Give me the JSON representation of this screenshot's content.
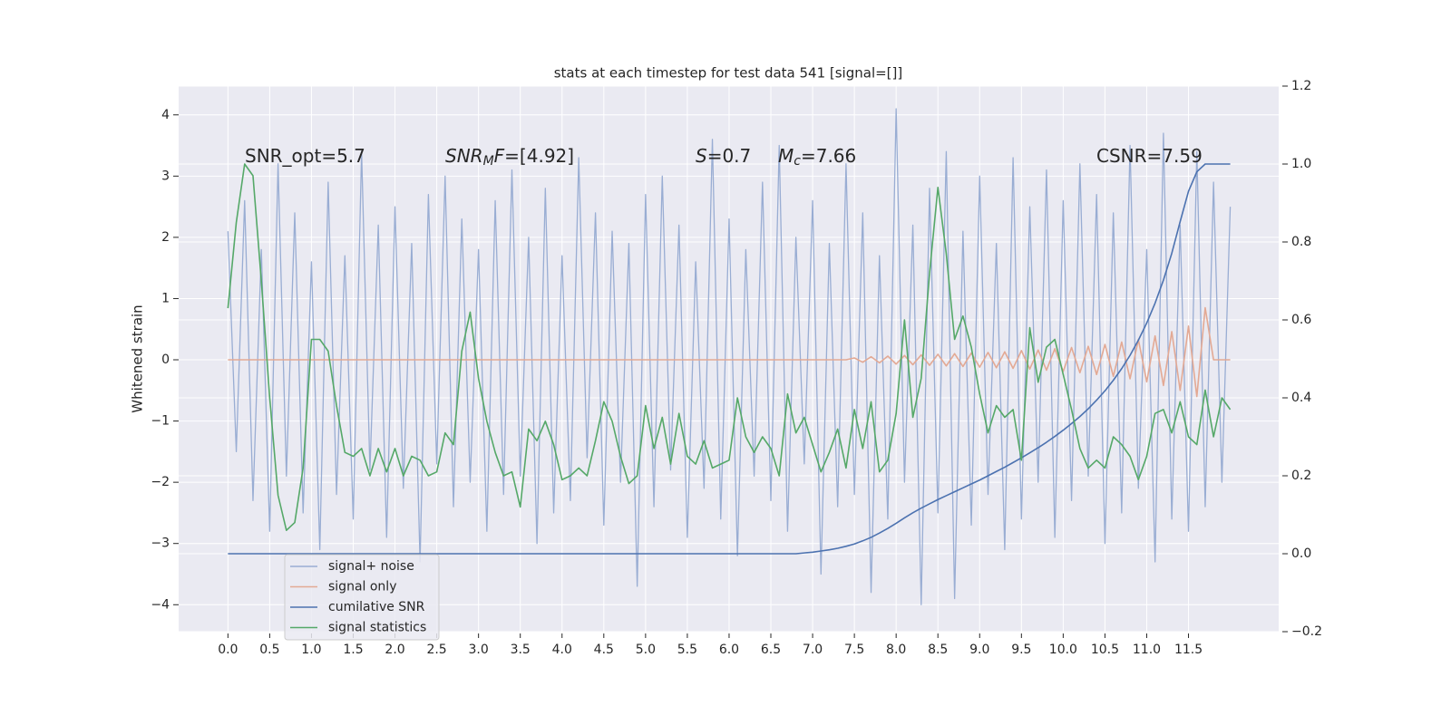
{
  "chart_data": {
    "type": "line",
    "title": "stats at each timestep for test data 541 [signal=[]]",
    "ylabel": "Whitened strain",
    "annotations": [
      [
        {
          "text": "SNR_opt=5.7",
          "style": "normal"
        }
      ],
      [
        {
          "text": "SNR",
          "style": "italic"
        },
        {
          "text": "M",
          "style": "sub"
        },
        {
          "text": "F",
          "style": "italic"
        },
        {
          "text": "=[4.92]",
          "style": "normal"
        }
      ],
      [
        {
          "text": "S",
          "style": "italic"
        },
        {
          "text": "=0.7",
          "style": "normal"
        }
      ],
      [
        {
          "text": "M",
          "style": "italic"
        },
        {
          "text": "c",
          "style": "sub"
        },
        {
          "text": "=7.66",
          "style": "normal"
        }
      ],
      [
        {
          "text": "CSNR=7.59",
          "style": "normal"
        }
      ]
    ],
    "x": [
      0,
      0.1,
      0.2,
      0.3,
      0.4,
      0.5,
      0.6,
      0.7,
      0.8,
      0.9,
      1.0,
      1.1,
      1.2,
      1.3,
      1.4,
      1.5,
      1.6,
      1.7,
      1.8,
      1.9,
      2.0,
      2.1,
      2.2,
      2.3,
      2.4,
      2.5,
      2.6,
      2.7,
      2.8,
      2.9,
      3.0,
      3.1,
      3.2,
      3.3,
      3.4,
      3.5,
      3.6,
      3.7,
      3.8,
      3.9,
      4.0,
      4.1,
      4.2,
      4.3,
      4.4,
      4.5,
      4.6,
      4.7,
      4.8,
      4.9,
      5.0,
      5.1,
      5.2,
      5.3,
      5.4,
      5.5,
      5.6,
      5.7,
      5.8,
      5.9,
      6.0,
      6.1,
      6.2,
      6.3,
      6.4,
      6.5,
      6.6,
      6.7,
      6.8,
      6.9,
      7.0,
      7.1,
      7.2,
      7.3,
      7.4,
      7.5,
      7.6,
      7.7,
      7.8,
      7.9,
      8.0,
      8.1,
      8.2,
      8.3,
      8.4,
      8.5,
      8.6,
      8.7,
      8.8,
      8.9,
      9.0,
      9.1,
      9.2,
      9.3,
      9.4,
      9.5,
      9.6,
      9.7,
      9.8,
      9.9,
      10.0,
      10.1,
      10.2,
      10.3,
      10.4,
      10.5,
      10.6,
      10.7,
      10.8,
      10.9,
      11.0,
      11.1,
      11.2,
      11.3,
      11.4,
      11.5,
      11.6,
      11.7,
      11.8,
      11.9,
      12.0
    ],
    "series": [
      {
        "name": "signal+ noise",
        "color": "#99add3",
        "axis": "y",
        "values": [
          2.1,
          -1.5,
          2.6,
          -2.3,
          1.8,
          -2.8,
          3.2,
          -1.9,
          2.4,
          -2.5,
          1.6,
          -3.1,
          2.9,
          -2.2,
          1.7,
          -2.6,
          3.4,
          -1.8,
          2.2,
          -2.9,
          2.5,
          -2.1,
          1.9,
          -3.3,
          2.7,
          -1.7,
          3.0,
          -2.4,
          2.3,
          -2.0,
          1.8,
          -2.8,
          2.6,
          -2.2,
          3.1,
          -1.9,
          2.0,
          -3.0,
          2.8,
          -2.5,
          1.7,
          -2.3,
          3.3,
          -1.6,
          2.4,
          -2.7,
          2.1,
          -2.0,
          1.9,
          -3.7,
          2.7,
          -2.4,
          3.0,
          -1.8,
          2.2,
          -2.9,
          1.6,
          -2.1,
          3.6,
          -2.6,
          2.3,
          -3.2,
          1.8,
          -1.9,
          2.9,
          -2.3,
          3.5,
          -2.8,
          2.0,
          -1.7,
          2.6,
          -3.5,
          1.9,
          -2.4,
          3.2,
          -2.2,
          2.4,
          -3.8,
          1.7,
          -2.6,
          4.1,
          -2.0,
          2.2,
          -4.0,
          2.8,
          -2.5,
          3.4,
          -3.9,
          2.1,
          -2.7,
          3.0,
          -2.2,
          1.9,
          -3.1,
          3.3,
          -2.6,
          2.5,
          -2.0,
          3.1,
          -2.9,
          2.6,
          -2.3,
          3.2,
          -1.9,
          2.7,
          -3.0,
          2.4,
          -2.5,
          3.5,
          -2.1,
          1.8,
          -3.3,
          3.7,
          -2.6,
          2.2,
          -2.8,
          3.4,
          -2.4,
          2.9,
          -2.0,
          2.5
        ]
      },
      {
        "name": "signal only",
        "color": "#e3a994",
        "axis": "y",
        "values": [
          0,
          0,
          0,
          0,
          0,
          0,
          0,
          0,
          0,
          0,
          0,
          0,
          0,
          0,
          0,
          0,
          0,
          0,
          0,
          0,
          0,
          0,
          0,
          0,
          0,
          0,
          0,
          0,
          0,
          0,
          0,
          0,
          0,
          0,
          0,
          0,
          0,
          0,
          0,
          0,
          0,
          0,
          0,
          0,
          0,
          0,
          0,
          0,
          0,
          0,
          0,
          0,
          0,
          0,
          0,
          0,
          0,
          0,
          0,
          0,
          0,
          0,
          0,
          0,
          0,
          0,
          0,
          0,
          0,
          0,
          0,
          0,
          0,
          0,
          0,
          0.03,
          -0.04,
          0.05,
          -0.05,
          0.06,
          -0.07,
          0.07,
          -0.08,
          0.08,
          -0.09,
          0.09,
          -0.1,
          0.1,
          -0.11,
          0.11,
          -0.12,
          0.12,
          -0.13,
          0.13,
          -0.14,
          0.15,
          -0.15,
          0.16,
          -0.17,
          0.18,
          -0.19,
          0.2,
          -0.21,
          0.22,
          -0.24,
          0.25,
          -0.27,
          0.29,
          -0.31,
          0.33,
          -0.36,
          0.39,
          -0.42,
          0.46,
          -0.5,
          0.55,
          -0.6,
          0.85,
          0,
          0,
          0
        ]
      },
      {
        "name": "cumilative SNR",
        "color": "#4c72b0",
        "axis": "y2",
        "values": [
          0,
          0,
          0,
          0,
          0,
          0,
          0,
          0,
          0,
          0,
          0,
          0,
          0,
          0,
          0,
          0,
          0,
          0,
          0,
          0,
          0,
          0,
          0,
          0,
          0,
          0,
          0,
          0,
          0,
          0,
          0,
          0,
          0,
          0,
          0,
          0,
          0,
          0,
          0,
          0,
          0,
          0,
          0,
          0,
          0,
          0,
          0,
          0,
          0,
          0,
          0,
          0,
          0,
          0,
          0,
          0,
          0,
          0,
          0,
          0,
          0,
          0,
          0,
          0,
          0,
          0,
          0,
          0,
          0,
          0.002,
          0.004,
          0.007,
          0.01,
          0.014,
          0.019,
          0.025,
          0.033,
          0.042,
          0.053,
          0.065,
          0.078,
          0.092,
          0.105,
          0.117,
          0.128,
          0.139,
          0.149,
          0.159,
          0.169,
          0.179,
          0.189,
          0.2,
          0.211,
          0.222,
          0.234,
          0.246,
          0.259,
          0.272,
          0.286,
          0.301,
          0.317,
          0.334,
          0.352,
          0.372,
          0.394,
          0.418,
          0.445,
          0.475,
          0.509,
          0.548,
          0.592,
          0.643,
          0.702,
          0.771,
          0.852,
          0.93,
          0.98,
          1.0,
          1.0,
          1.0,
          1.0
        ]
      },
      {
        "name": "signal statistics",
        "color": "#55a868",
        "axis": "y2",
        "values": [
          0.63,
          0.85,
          1.0,
          0.97,
          0.7,
          0.4,
          0.15,
          0.06,
          0.08,
          0.22,
          0.55,
          0.55,
          0.52,
          0.38,
          0.26,
          0.25,
          0.27,
          0.2,
          0.27,
          0.21,
          0.27,
          0.2,
          0.25,
          0.24,
          0.2,
          0.21,
          0.31,
          0.28,
          0.52,
          0.62,
          0.45,
          0.34,
          0.26,
          0.2,
          0.21,
          0.12,
          0.32,
          0.29,
          0.34,
          0.28,
          0.19,
          0.2,
          0.22,
          0.2,
          0.29,
          0.39,
          0.34,
          0.25,
          0.18,
          0.2,
          0.38,
          0.27,
          0.35,
          0.23,
          0.36,
          0.25,
          0.23,
          0.29,
          0.22,
          0.23,
          0.24,
          0.4,
          0.3,
          0.26,
          0.3,
          0.27,
          0.2,
          0.41,
          0.31,
          0.35,
          0.28,
          0.21,
          0.26,
          0.32,
          0.22,
          0.37,
          0.27,
          0.39,
          0.21,
          0.24,
          0.36,
          0.6,
          0.35,
          0.45,
          0.72,
          0.94,
          0.77,
          0.55,
          0.61,
          0.53,
          0.41,
          0.31,
          0.38,
          0.35,
          0.37,
          0.24,
          0.58,
          0.44,
          0.53,
          0.55,
          0.46,
          0.37,
          0.27,
          0.22,
          0.24,
          0.22,
          0.3,
          0.28,
          0.25,
          0.19,
          0.25,
          0.36,
          0.37,
          0.31,
          0.39,
          0.3,
          0.28,
          0.42,
          0.3,
          0.4,
          0.37
        ]
      }
    ],
    "xlim": [
      -0.59,
      12.58
    ],
    "xticks": [
      {
        "value": 0,
        "label": "0.0"
      },
      0.5,
      {
        "value": 1,
        "label": "1.0"
      },
      1.5,
      {
        "value": 2,
        "label": "2.0"
      },
      2.5,
      {
        "value": 3,
        "label": "3.0"
      },
      3.5,
      {
        "value": 4,
        "label": "4.0"
      },
      4.5,
      {
        "value": 5,
        "label": "5.0"
      },
      5.5,
      {
        "value": 6,
        "label": "6.0"
      },
      6.5,
      {
        "value": 7,
        "label": "7.0"
      },
      7.5,
      {
        "value": 8,
        "label": "8.0"
      },
      8.5,
      {
        "value": 9,
        "label": "9.0"
      },
      9.5,
      {
        "value": 10,
        "label": "10.0"
      },
      10.5,
      {
        "value": 11,
        "label": "11.0"
      },
      11.5
    ],
    "ylim": [
      -4.44,
      4.47
    ],
    "yticks": [
      {
        "value": -4,
        "label": "−4"
      },
      {
        "value": -3,
        "label": "−3"
      },
      {
        "value": -2,
        "label": "−2"
      },
      {
        "value": -1,
        "label": "−1"
      },
      0,
      1,
      2,
      3,
      4
    ],
    "y2lim": [
      -0.2,
      1.2
    ],
    "y2ticks": [
      {
        "value": -0.2,
        "label": "−0.2"
      },
      {
        "value": 0,
        "label": "0.0"
      },
      0.2,
      0.4,
      0.6,
      0.8,
      {
        "value": 1,
        "label": "1.0"
      },
      1.2
    ],
    "grid": true,
    "legend": "lower left"
  }
}
